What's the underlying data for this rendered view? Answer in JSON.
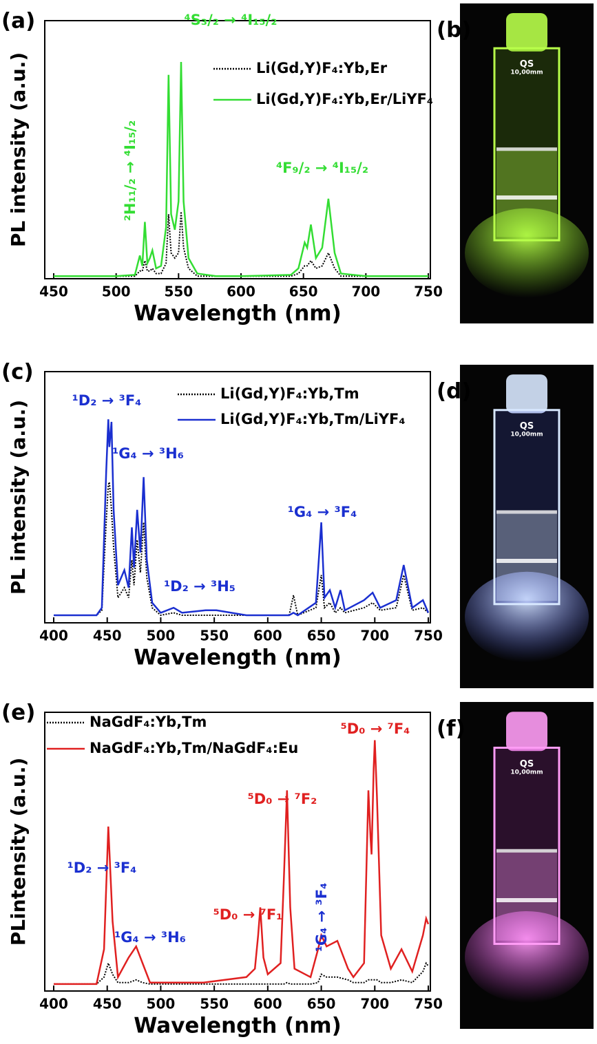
{
  "chart_data": [
    {
      "type": "line",
      "panel_label": "(a)",
      "xlabel": "Wavelength  (nm)",
      "ylabel": "PL intensity  (a.u.)",
      "xlim": [
        450,
        750
      ],
      "xticks": [
        450,
        500,
        550,
        600,
        650,
        700,
        750
      ],
      "ylim": [
        0,
        100
      ],
      "legend": "upper right",
      "x": [
        450,
        500,
        515,
        519,
        521,
        523,
        525,
        527,
        529,
        532,
        536,
        540,
        542,
        544,
        547,
        550,
        552,
        554,
        558,
        565,
        580,
        600,
        640,
        646,
        651,
        653,
        656,
        660,
        665,
        670,
        675,
        680,
        700,
        750
      ],
      "series": [
        {
          "name": "Li(Gd,Y)F₄:Yb,Er",
          "color": "#000000",
          "linestyle": "dotted",
          "values": [
            1,
            1,
            1,
            3,
            3,
            7,
            3,
            3,
            4,
            2,
            2,
            6,
            25,
            10,
            8,
            10,
            26,
            12,
            4,
            1,
            1,
            1,
            1,
            2,
            5,
            5,
            7,
            4,
            5,
            10,
            4,
            1,
            1,
            1
          ]
        },
        {
          "name": "Li(Gd,Y)F₄:Yb,Er/LiYF₄",
          "color": "#33dd33",
          "linestyle": "solid",
          "values": [
            1,
            1,
            1.5,
            9,
            5,
            22,
            6,
            8,
            11,
            4,
            5,
            20,
            79,
            25,
            19,
            30,
            84,
            30,
            8,
            2,
            1,
            1,
            1.5,
            4,
            14,
            12,
            21,
            8,
            12,
            31,
            10,
            2,
            1,
            1
          ]
        }
      ],
      "annotations": [
        {
          "text": "⁴S₃/₂ → ⁴I₁₅/₂",
          "color": "#33dd33"
        },
        {
          "text": "²H₁₁/₂ → ⁴I₁₅/₂",
          "color": "#33dd33"
        },
        {
          "text": "⁴F₉/₂ → ⁴I₁₅/₂",
          "color": "#33dd33"
        }
      ]
    },
    {
      "type": "line",
      "panel_label": "(c)",
      "xlabel": "Wavelength (nm)",
      "ylabel": "PL intensity  (a.u.)",
      "xlim": [
        400,
        750
      ],
      "xticks": [
        400,
        450,
        500,
        550,
        600,
        650,
        700,
        750
      ],
      "ylim": [
        0,
        100
      ],
      "legend": "upper right",
      "x": [
        400,
        440,
        445,
        449,
        451,
        452,
        454,
        456,
        460,
        466,
        470,
        473,
        475,
        478,
        481,
        484,
        487,
        492,
        500,
        512,
        520,
        542,
        552,
        580,
        620,
        624,
        628,
        645,
        650,
        653,
        658,
        663,
        668,
        672,
        690,
        698,
        705,
        720,
        727,
        735,
        745,
        750
      ],
      "series": [
        {
          "name": "Li(Gd,Y)F₄:Yb,Tm",
          "color": "#000000",
          "linestyle": "dotted",
          "values": [
            3,
            3,
            5,
            40,
            55,
            56,
            45,
            30,
            10,
            14,
            10,
            25,
            15,
            33,
            20,
            40,
            18,
            6,
            3,
            4,
            3,
            3,
            3,
            3,
            3,
            11,
            3,
            6,
            19,
            6,
            8,
            4,
            6,
            4,
            6,
            8,
            5,
            6,
            19,
            5,
            6,
            4
          ]
        },
        {
          "name": "Li(Gd,Y)F₄:Yb,Tm/LiYF₄",
          "color": "#1a2fd0",
          "linestyle": "solid",
          "values": [
            3,
            3,
            6,
            60,
            81,
            70,
            80,
            45,
            15,
            21,
            14,
            38,
            22,
            45,
            28,
            58,
            25,
            8,
            4,
            6,
            4,
            5,
            5,
            3,
            3,
            4,
            3,
            8,
            40,
            10,
            13,
            6,
            13,
            5,
            9,
            12,
            6,
            9,
            23,
            6,
            9,
            4
          ]
        }
      ],
      "annotations": [
        {
          "text": "¹D₂ → ³F₄",
          "color": "#1a2fd0"
        },
        {
          "text": "¹G₄ → ³H₆",
          "color": "#1a2fd0"
        },
        {
          "text": "¹D₂ → ³H₅",
          "color": "#1a2fd0"
        },
        {
          "text": "¹G₄ → ³F₄",
          "color": "#1a2fd0"
        }
      ]
    },
    {
      "type": "line",
      "panel_label": "(e)",
      "xlabel": "Wavelength (nm)",
      "ylabel": "PLintensity (a.u.)",
      "xlim": [
        400,
        750
      ],
      "xticks": [
        400,
        450,
        500,
        550,
        600,
        650,
        700,
        750
      ],
      "ylim": [
        0,
        100
      ],
      "legend": "upper left",
      "x": [
        400,
        440,
        447,
        451,
        455,
        460,
        470,
        477,
        483,
        490,
        540,
        580,
        588,
        591,
        593,
        596,
        600,
        612,
        615,
        618,
        621,
        625,
        640,
        647,
        650,
        655,
        665,
        675,
        680,
        690,
        694,
        696,
        697,
        699,
        700,
        702,
        706,
        715,
        725,
        735,
        745,
        748,
        750
      ],
      "series": [
        {
          "name": "NaGdF₄:Yb,Tm",
          "color": "#000000",
          "linestyle": "dotted",
          "values": [
            2.5,
            2.5,
            5,
            10,
            6,
            3,
            3,
            4,
            3,
            2.5,
            2.5,
            2.5,
            2.5,
            2.5,
            2.5,
            2.5,
            2.5,
            2.5,
            2.5,
            3,
            2.5,
            2.5,
            2.5,
            3,
            6,
            5,
            5,
            4,
            3,
            3,
            4,
            4,
            4,
            4,
            4,
            4,
            3,
            3,
            4,
            3,
            7,
            10,
            9
          ]
        },
        {
          "name": "NaGdF₄:Yb,Tm/NaGdF₄:Eu",
          "color": "#e02020",
          "linestyle": "solid",
          "values": [
            2.5,
            2.5,
            15,
            59,
            25,
            5,
            12,
            16,
            10,
            3,
            3,
            5,
            8,
            20,
            30,
            12,
            6,
            10,
            40,
            72,
            30,
            8,
            5,
            15,
            20,
            16,
            18,
            8,
            5,
            10,
            72,
            55,
            49,
            80,
            90,
            70,
            20,
            8,
            15,
            7,
            20,
            26,
            24
          ]
        }
      ],
      "annotations": [
        {
          "text": "⁵D₀ → ⁷F₄",
          "color": "#e02020"
        },
        {
          "text": "⁵D₀ → ⁷F₂",
          "color": "#e02020"
        },
        {
          "text": "¹D₂ → ³F₄",
          "color": "#1a2fd0"
        },
        {
          "text": "⁵D₀ → ⁷F₁",
          "color": "#e02020"
        },
        {
          "text": "¹G₄ → ³H₆",
          "color": "#1a2fd0"
        },
        {
          "text": "¹G₄ → ³F₄",
          "color": "#1a2fd0"
        }
      ]
    }
  ],
  "photos": [
    {
      "label": "(b)",
      "marking": "QS",
      "size": "10,00mm"
    },
    {
      "label": "(d)",
      "marking": "QS",
      "size": "10,00mm"
    },
    {
      "label": "(f)",
      "marking": "QS",
      "size": "10,00mm"
    }
  ]
}
